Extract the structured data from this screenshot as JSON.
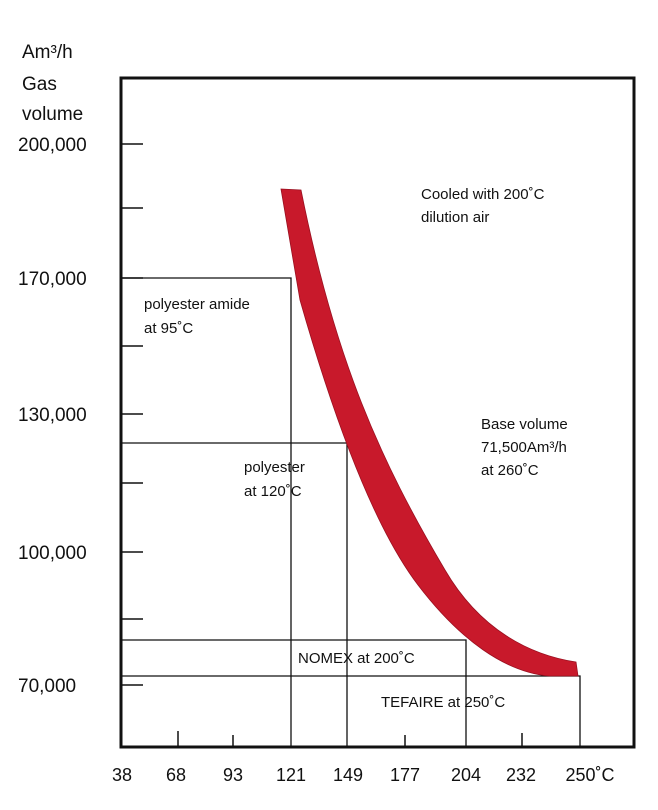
{
  "chart_data": {
    "type": "line",
    "title": "",
    "ylabel_lines": [
      "Am³/h",
      "Gas",
      "volume"
    ],
    "xlabel": "",
    "x_ticks": [
      "38",
      "68",
      "93",
      "121",
      "149",
      "177",
      "204",
      "232",
      "250˚C"
    ],
    "y_ticks": [
      "200,000",
      "170,000",
      "130,000",
      "100,000",
      "70,000"
    ],
    "series": [
      {
        "x": [
          121,
          135,
          149,
          163,
          177,
          190,
          204,
          218,
          232,
          245,
          250
        ],
        "y": [
          188000,
          160000,
          131000,
          111000,
          97500,
          88000,
          80000,
          75500,
          72500,
          71500,
          71500
        ]
      }
    ],
    "annotations": {
      "cooled": [
        "Cooled with 200˚C",
        "dilution air"
      ],
      "base": [
        "Base volume",
        "71,500Am³/h",
        "at 260˚C"
      ],
      "polyester_amide": [
        "polyester amide",
        "at 95˚C"
      ],
      "polyester": [
        "polyester",
        "at 120˚C"
      ],
      "nomex": "NOMEX at 200˚C",
      "tefaire": "TEFAIRE at 250˚C"
    },
    "curve_color": "#c8192b"
  }
}
